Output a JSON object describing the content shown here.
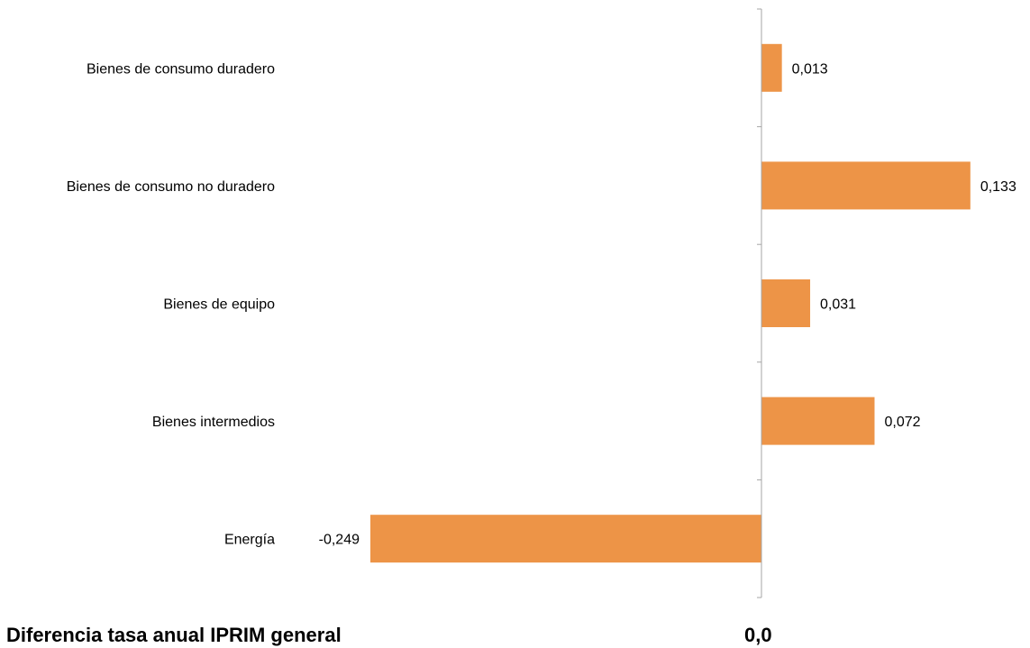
{
  "chart_data": {
    "type": "bar",
    "orientation": "horizontal",
    "categories": [
      "Bienes de consumo duradero",
      "Bienes de consumo no duradero",
      "Bienes de equipo",
      "Bienes intermedios",
      "Energía"
    ],
    "values": [
      0.013,
      0.133,
      0.031,
      0.072,
      -0.249
    ],
    "value_labels": [
      "0,013",
      "0,133",
      "0,031",
      "0,072",
      "-0,249"
    ],
    "xlim": [
      -0.249,
      0.133
    ],
    "bar_color": "#ED9447",
    "axis_color": "#A6A6A6",
    "grid": false,
    "legend": "none"
  },
  "footer": {
    "label": "Diferencia tasa anual IPRIM general",
    "value": "0,0"
  }
}
